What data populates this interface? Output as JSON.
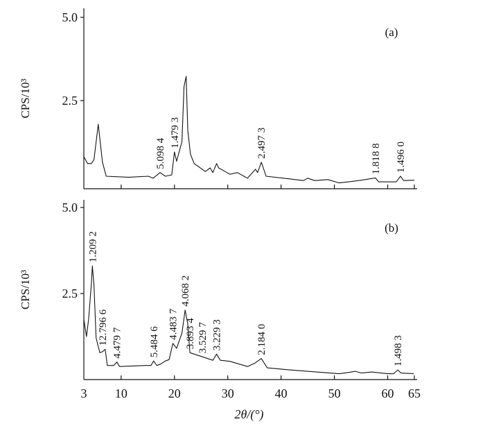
{
  "chart_data": [
    {
      "type": "line",
      "panel_label": "(a)",
      "xlabel": "2θ/(°)",
      "ylabel": "CPS/10³",
      "xlim": [
        3,
        65
      ],
      "ylim": [
        0,
        5.0
      ],
      "y_ticks": [
        "5.0",
        "2.5"
      ],
      "y_tick_values": [
        5.0,
        2.5
      ],
      "x_tick_values": [
        10,
        20,
        30,
        40,
        50,
        60,
        65
      ],
      "x": [
        3,
        3.7,
        4.4,
        4.9,
        5.7,
        6.5,
        7.2,
        11.4,
        15.1,
        16.0,
        17.3,
        18.3,
        19.5,
        20.0,
        20.4,
        21.4,
        21.8,
        22.2,
        22.5,
        23.0,
        23.7,
        25.8,
        26.7,
        27.2,
        27.9,
        28.3,
        29.5,
        30.4,
        31.8,
        33.7,
        35.2,
        35.6,
        36.3,
        37.2,
        41.6,
        44.2,
        45.0,
        46.3,
        48.8,
        50.9,
        54.6,
        57.7,
        58.3,
        61.6,
        62.4,
        63.0,
        65
      ],
      "y": [
        0.82,
        0.61,
        0.61,
        0.72,
        1.79,
        0.65,
        0.23,
        0.2,
        0.23,
        0.17,
        0.34,
        0.23,
        0.27,
        0.96,
        0.68,
        1.27,
        2.92,
        3.23,
        1.61,
        0.89,
        0.61,
        0.37,
        0.48,
        0.34,
        0.61,
        0.48,
        0.37,
        0.29,
        0.34,
        0.17,
        0.44,
        0.34,
        0.65,
        0.23,
        0.15,
        0.1,
        0.17,
        0.1,
        0.13,
        0.03,
        0.1,
        0.18,
        0.06,
        0.06,
        0.23,
        0.1,
        0.11
      ],
      "annotations": [
        {
          "text": "5.098 4",
          "x": 17.3,
          "y": 0.34
        },
        {
          "text": "1.479 3",
          "x": 20.0,
          "y": 0.96
        },
        {
          "text": "2.497 3",
          "x": 36.3,
          "y": 0.65
        },
        {
          "text": "1.818 8",
          "x": 57.7,
          "y": 0.18
        },
        {
          "text": "1.496 0",
          "x": 62.4,
          "y": 0.23
        }
      ]
    },
    {
      "type": "line",
      "panel_label": "(b)",
      "xlabel": "2θ/(°)",
      "ylabel": "CPS/10³",
      "xlim": [
        3,
        65
      ],
      "ylim": [
        0,
        5.0
      ],
      "y_ticks": [
        "5.0",
        "2.5"
      ],
      "y_tick_values": [
        5.0,
        2.5
      ],
      "x_ticks": [
        "3",
        "10",
        "20",
        "30",
        "40",
        "50",
        "60",
        "65"
      ],
      "x_tick_values": [
        3,
        10,
        20,
        30,
        40,
        50,
        60,
        65
      ],
      "x": [
        3,
        3.5,
        3.9,
        4.4,
        4.6,
        4.9,
        5.3,
        6.0,
        6.5,
        7.0,
        7.4,
        8.6,
        9.2,
        9.7,
        14.6,
        15.6,
        16.1,
        16.7,
        17.4,
        18.3,
        19.0,
        19.7,
        20.4,
        21.4,
        22.0,
        22.5,
        22.9,
        24.9,
        27.2,
        27.9,
        28.6,
        30.4,
        33.7,
        35.1,
        36.3,
        37.4,
        41.6,
        50.9,
        52.8,
        53.9,
        55.1,
        57.0,
        60.0,
        61.1,
        61.9,
        62.5,
        64.9
      ],
      "y": [
        1.75,
        1.25,
        1.75,
        2.76,
        3.3,
        2.76,
        1.21,
        0.78,
        0.81,
        0.88,
        0.41,
        0.41,
        0.51,
        0.38,
        0.41,
        0.41,
        0.54,
        0.41,
        0.45,
        0.54,
        0.58,
        1.05,
        0.91,
        1.35,
        2.02,
        1.62,
        0.78,
        0.68,
        0.56,
        0.74,
        0.56,
        0.53,
        0.38,
        0.48,
        0.61,
        0.34,
        0.28,
        0.17,
        0.21,
        0.24,
        0.19,
        0.22,
        0.17,
        0.17,
        0.28,
        0.19,
        0.17
      ],
      "annotations": [
        {
          "text": "1.209 2",
          "x": 4.6,
          "y": 3.3
        },
        {
          "text": "12.796 6",
          "x": 6.5,
          "y": 0.88
        },
        {
          "text": "4.479 7",
          "x": 9.2,
          "y": 0.51
        },
        {
          "text": "5.484 6",
          "x": 16.1,
          "y": 0.54
        },
        {
          "text": "4.483 7",
          "x": 19.7,
          "y": 1.05
        },
        {
          "text": "4.068 2",
          "x": 22.0,
          "y": 2.02
        },
        {
          "text": "3.893 4",
          "x": 22.9,
          "y": 0.78
        },
        {
          "text": "3.529 7",
          "x": 25.2,
          "y": 0.66
        },
        {
          "text": "3.229 3",
          "x": 27.9,
          "y": 0.74
        },
        {
          "text": "2.184 0",
          "x": 36.3,
          "y": 0.61
        },
        {
          "text": "1.498 3",
          "x": 61.9,
          "y": 0.28
        }
      ]
    }
  ]
}
